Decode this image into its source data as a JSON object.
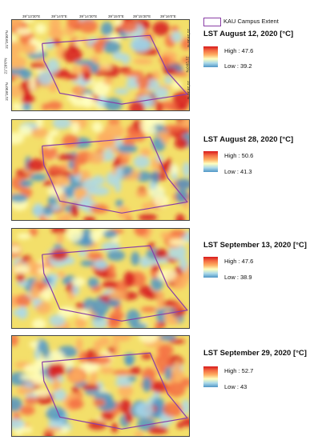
{
  "extent_legend": {
    "label": "KAU Campus Extent",
    "color": "#8a3fa6"
  },
  "ticks": {
    "top": [
      "39°13'30\"E",
      "39°14'0\"E",
      "39°14'30\"E",
      "39°15'0\"E",
      "39°15'30\"E",
      "39°16'0\"E"
    ],
    "left": [
      "21°29'30\"N",
      "21°29'0\"N",
      "21°28'30\"N"
    ],
    "right": [
      "21°29'30\"N",
      "21°29'0\"N",
      "21°28'30\"N"
    ]
  },
  "panels": [
    {
      "title": "LST August 12, 2020 [°C]",
      "high": "High : 47.6",
      "low": "Low : 39.2"
    },
    {
      "title": "LST August 28, 2020 [°C]",
      "high": "High : 50.6",
      "low": "Low : 41.3"
    },
    {
      "title": "LST September 13, 2020 [°C]",
      "high": "High : 47.6",
      "low": "Low : 38.9"
    },
    {
      "title": "LST September 29, 2020 [°C]",
      "high": "High : 52.7",
      "low": "Low : 43"
    }
  ],
  "ramp_colors": [
    "#d7191c",
    "#f46d43",
    "#fdae61",
    "#ffffbf",
    "#abd9e9",
    "#4f96c6"
  ]
}
